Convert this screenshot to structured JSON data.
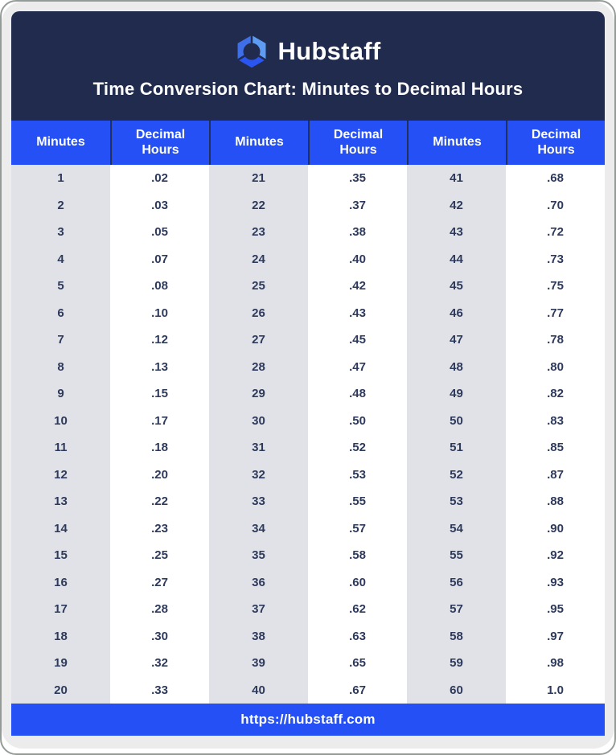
{
  "brand": {
    "name": "Hubstaff",
    "logo_colors": {
      "top_left": "#3f6fe8",
      "top_right": "#5e9cf3",
      "bottom": "#2b55f0"
    }
  },
  "title": "Time Conversion Chart: Minutes to Decimal Hours",
  "table": {
    "column_headers": [
      "Minutes",
      "Decimal Hours",
      "Minutes",
      "Decimal Hours",
      "Minutes",
      "Decimal Hours"
    ]
  },
  "footer": {
    "url": "https://hubstaff.com"
  },
  "colors": {
    "navy": "#202b4e",
    "blue": "#2550f5",
    "column_gray": "#e1e2e7",
    "card_gray": "#ebeceb",
    "cell_text": "#2e3a5c"
  },
  "chart_data": {
    "type": "table",
    "title": "Time Conversion Chart: Minutes to Decimal Hours",
    "columns": [
      "Minutes",
      "Decimal Hours"
    ],
    "layout": "three side-by-side Minutes/Decimal Hours column pairs, 20 rows each",
    "pairs": [
      [
        "1",
        ".02"
      ],
      [
        "2",
        ".03"
      ],
      [
        "3",
        ".05"
      ],
      [
        "4",
        ".07"
      ],
      [
        "5",
        ".08"
      ],
      [
        "6",
        ".10"
      ],
      [
        "7",
        ".12"
      ],
      [
        "8",
        ".13"
      ],
      [
        "9",
        ".15"
      ],
      [
        "10",
        ".17"
      ],
      [
        "11",
        ".18"
      ],
      [
        "12",
        ".20"
      ],
      [
        "13",
        ".22"
      ],
      [
        "14",
        ".23"
      ],
      [
        "15",
        ".25"
      ],
      [
        "16",
        ".27"
      ],
      [
        "17",
        ".28"
      ],
      [
        "18",
        ".30"
      ],
      [
        "19",
        ".32"
      ],
      [
        "20",
        ".33"
      ],
      [
        "21",
        ".35"
      ],
      [
        "22",
        ".37"
      ],
      [
        "23",
        ".38"
      ],
      [
        "24",
        ".40"
      ],
      [
        "25",
        ".42"
      ],
      [
        "26",
        ".43"
      ],
      [
        "27",
        ".45"
      ],
      [
        "28",
        ".47"
      ],
      [
        "29",
        ".48"
      ],
      [
        "30",
        ".50"
      ],
      [
        "31",
        ".52"
      ],
      [
        "32",
        ".53"
      ],
      [
        "33",
        ".55"
      ],
      [
        "34",
        ".57"
      ],
      [
        "35",
        ".58"
      ],
      [
        "36",
        ".60"
      ],
      [
        "37",
        ".62"
      ],
      [
        "38",
        ".63"
      ],
      [
        "39",
        ".65"
      ],
      [
        "40",
        ".67"
      ],
      [
        "41",
        ".68"
      ],
      [
        "42",
        ".70"
      ],
      [
        "43",
        ".72"
      ],
      [
        "44",
        ".73"
      ],
      [
        "45",
        ".75"
      ],
      [
        "46",
        ".77"
      ],
      [
        "47",
        ".78"
      ],
      [
        "48",
        ".80"
      ],
      [
        "49",
        ".82"
      ],
      [
        "50",
        ".83"
      ],
      [
        "51",
        ".85"
      ],
      [
        "52",
        ".87"
      ],
      [
        "53",
        ".88"
      ],
      [
        "54",
        ".90"
      ],
      [
        "55",
        ".92"
      ],
      [
        "56",
        ".93"
      ],
      [
        "57",
        ".95"
      ],
      [
        "58",
        ".97"
      ],
      [
        "59",
        ".98"
      ],
      [
        "60",
        "1.0"
      ]
    ]
  }
}
